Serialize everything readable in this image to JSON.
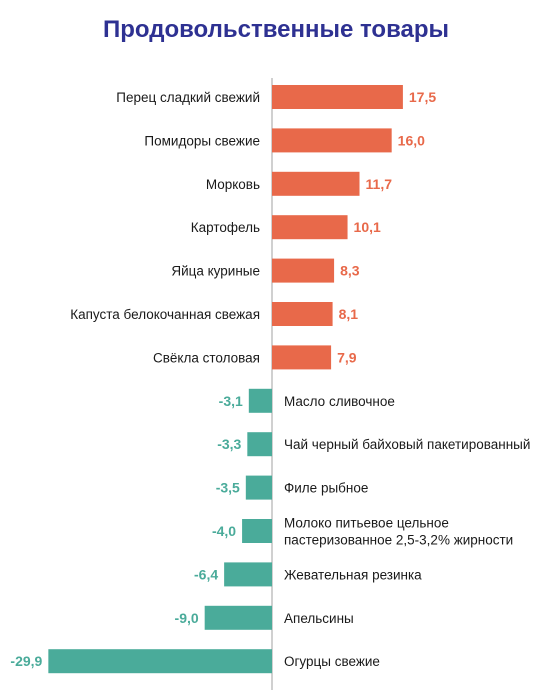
{
  "chart_data": {
    "type": "bar",
    "orientation": "horizontal",
    "title": "Продовольственные товары",
    "categories": [
      "Перец сладкий свежий",
      "Помидоры свежие",
      "Морковь",
      "Картофель",
      "Яйца куриные",
      "Капуста белокочанная свежая",
      "Свёкла столовая",
      "Масло сливочное",
      "Чай черный байховый пакетированный",
      "Филе рыбное",
      "Молоко питьевое цельное пастеризованное 2,5-3,2% жирности",
      "Жевательная резинка",
      "Апельсины",
      "Огурцы свежие"
    ],
    "values": [
      17.5,
      16.0,
      11.7,
      10.1,
      8.3,
      8.1,
      7.9,
      -3.1,
      -3.3,
      -3.5,
      -4.0,
      -6.4,
      -9.0,
      -29.9
    ],
    "value_labels": [
      "17,5",
      "16,0",
      "11,7",
      "10,1",
      "8,3",
      "8,1",
      "7,9",
      "-3,1",
      "-3,3",
      "-3,5",
      "-4,0",
      "-6,4",
      "-9,0",
      "-29,9"
    ],
    "category_label_lines": [
      [
        "Перец сладкий свежий"
      ],
      [
        "Помидоры свежие"
      ],
      [
        "Морковь"
      ],
      [
        "Картофель"
      ],
      [
        "Яйца куриные"
      ],
      [
        "Капуста белокочанная свежая"
      ],
      [
        "Свёкла столовая"
      ],
      [
        "Масло сливочное"
      ],
      [
        "Чай черный байховый пакетированный"
      ],
      [
        "Филе рыбное"
      ],
      [
        "Молоко питьевое цельное",
        "пастеризованное 2,5-3,2% жирности"
      ],
      [
        "Жевательная резинка"
      ],
      [
        "Апельсины"
      ],
      [
        "Огурцы свежие"
      ]
    ],
    "positive_color": "#e8694a",
    "negative_color": "#4aab9a",
    "title_color": "#2e3192",
    "axis_color": "#b0b0b0",
    "grid": false,
    "legend": "none"
  }
}
